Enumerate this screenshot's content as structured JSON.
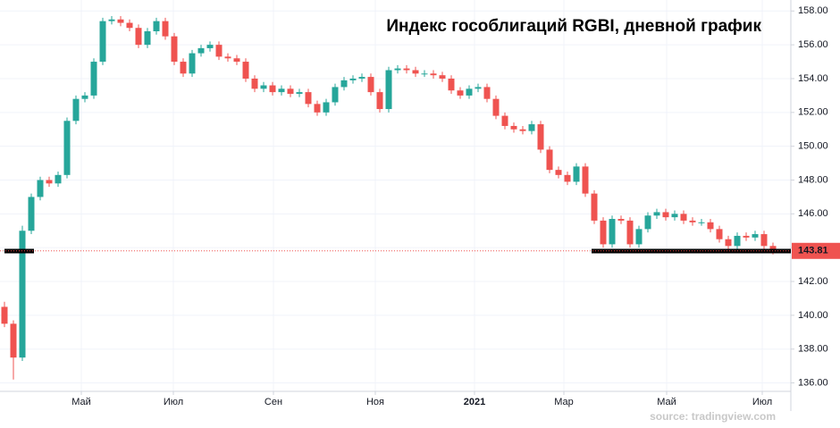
{
  "chart_data": {
    "type": "candlestick",
    "title": "Индекс гособлигаций RGBI, дневной график",
    "source": "source: tradingview.com",
    "up_color": "#26a69a",
    "down_color": "#ef5350",
    "open": [
      140.5,
      139.5,
      137.5,
      145,
      147,
      148,
      147.8,
      148.3,
      151.5,
      152.8,
      153,
      155,
      157.4,
      157.5,
      157.3,
      157,
      156,
      156.8,
      157.4,
      156.5,
      155,
      154.3,
      155.5,
      155.8,
      156,
      155.3,
      155.2,
      155,
      154,
      153.4,
      153.6,
      153.2,
      153.4,
      153.1,
      153.2,
      152.5,
      152,
      152.6,
      153.5,
      153.9,
      154,
      154.1,
      153.2,
      152.2,
      154.5,
      154.6,
      154.5,
      154.3,
      154.3,
      154.2,
      154,
      153.3,
      153,
      153.4,
      153.5,
      152.8,
      151.8,
      151.2,
      151,
      150.9,
      151.3,
      149.8,
      148.6,
      148.3,
      147.9,
      148.8,
      147.2,
      145.6,
      144.2,
      145.7,
      145.6,
      144.2,
      145.1,
      145.9,
      146.1,
      145.8,
      146,
      145.6,
      145.5,
      145.5,
      145.1,
      144.5,
      144.1,
      144.7,
      144.6,
      144.8,
      144.1
    ],
    "high": [
      140.8,
      139.7,
      145.3,
      147.2,
      148.2,
      148.2,
      148.5,
      151.7,
      153,
      153.2,
      155.2,
      157.6,
      157.7,
      157.7,
      157.5,
      157.2,
      157,
      157.6,
      157.6,
      156.7,
      155.2,
      155.7,
      156,
      156.2,
      156.2,
      155.5,
      155.4,
      155.2,
      154.2,
      153.8,
      153.8,
      153.6,
      153.6,
      153.4,
      153.4,
      152.7,
      152.8,
      153.7,
      154.1,
      154.2,
      154.3,
      154.3,
      153.4,
      154.7,
      154.8,
      154.8,
      154.7,
      154.5,
      154.5,
      154.4,
      154.2,
      153.5,
      153.6,
      153.7,
      153.7,
      153,
      152,
      151.4,
      151.2,
      151.5,
      151.5,
      150,
      148.8,
      148.5,
      149,
      149,
      147.4,
      145.8,
      145.9,
      145.9,
      145.8,
      145.3,
      146.1,
      146.3,
      146.3,
      146.2,
      146.2,
      145.8,
      145.7,
      145.7,
      145.3,
      144.7,
      144.9,
      144.9,
      145,
      145,
      144.3
    ],
    "low": [
      139.3,
      136.2,
      137.3,
      144.8,
      146.8,
      147.6,
      147.6,
      148.1,
      151.3,
      152.6,
      152.8,
      154.8,
      157.2,
      157.1,
      156.8,
      155.8,
      155.8,
      156.6,
      156.3,
      154.8,
      154.1,
      154.1,
      155.3,
      155.6,
      155.1,
      155,
      154.8,
      153.8,
      153.2,
      153.2,
      153,
      153,
      152.9,
      152.9,
      152.3,
      151.8,
      151.8,
      152.4,
      153.3,
      153.7,
      153.8,
      153,
      152,
      152,
      154.3,
      154.3,
      154.1,
      154.1,
      154,
      153.8,
      153.1,
      152.8,
      152.8,
      153.2,
      152.6,
      151.6,
      151,
      150.8,
      150.7,
      150.7,
      149.6,
      148.4,
      148.1,
      147.7,
      147.7,
      147,
      145.4,
      144,
      144,
      145.4,
      144,
      144,
      144.9,
      145.7,
      145.6,
      145.6,
      145.4,
      145.3,
      145.3,
      144.9,
      144.3,
      143.9,
      143.9,
      144.4,
      144.4,
      143.9,
      143.6
    ],
    "close": [
      139.5,
      137.5,
      145,
      147,
      148,
      147.8,
      148.3,
      151.5,
      152.8,
      153,
      155,
      157.4,
      157.5,
      157.3,
      157,
      156,
      156.8,
      157.4,
      156.5,
      155,
      154.3,
      155.5,
      155.8,
      156,
      155.3,
      155.2,
      155,
      154,
      153.4,
      153.6,
      153.2,
      153.4,
      153.1,
      153.2,
      152.5,
      152,
      152.6,
      153.5,
      153.9,
      154,
      154.1,
      153.2,
      152.2,
      154.5,
      154.6,
      154.5,
      154.3,
      154.3,
      154.2,
      154,
      153.3,
      153,
      153.4,
      153.5,
      152.8,
      151.8,
      151.2,
      151,
      150.9,
      151.3,
      149.8,
      148.6,
      148.3,
      147.9,
      148.8,
      147.2,
      145.6,
      144.2,
      145.7,
      145.6,
      144.2,
      145.1,
      145.9,
      146.1,
      145.8,
      146,
      145.6,
      145.5,
      145.5,
      145.1,
      144.5,
      144.1,
      144.7,
      144.6,
      144.8,
      144.1,
      143.81
    ],
    "last_price": 143.81,
    "xlim": [
      -0.5,
      88
    ],
    "xticks": [
      {
        "value": 8.6,
        "label": "Май"
      },
      {
        "value": 18.9,
        "label": "Июл"
      },
      {
        "value": 30.1,
        "label": "Сен"
      },
      {
        "value": 41.5,
        "label": "Ноя"
      },
      {
        "value": 52.6,
        "label": "2021"
      },
      {
        "value": 62.6,
        "label": "Мар"
      },
      {
        "value": 74.1,
        "label": "Май"
      },
      {
        "value": 84.8,
        "label": "Июл"
      }
    ],
    "ylim": [
      135.5,
      158.65
    ],
    "yticks": [
      {
        "value": 136,
        "label": "136.00"
      },
      {
        "value": 138,
        "label": "138.00"
      },
      {
        "value": 140,
        "label": "140.00"
      },
      {
        "value": 142,
        "label": "142.00"
      },
      {
        "value": 144,
        "label": "144.00"
      },
      {
        "value": 146,
        "label": "146.00"
      },
      {
        "value": 148,
        "label": "148.00"
      },
      {
        "value": 150,
        "label": "150.00"
      },
      {
        "value": 152,
        "label": "152.00"
      },
      {
        "value": 154,
        "label": "154.00"
      },
      {
        "value": 156,
        "label": "156.00"
      },
      {
        "value": 158,
        "label": "158.00"
      }
    ],
    "grid": true
  }
}
